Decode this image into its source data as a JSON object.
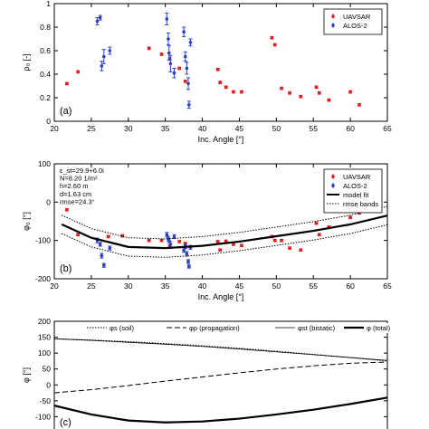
{
  "colors": {
    "uavsar": "#e41a1c",
    "alos2": "#2b3fc4",
    "axis": "#000000"
  },
  "chart_data": [
    {
      "type": "scatter",
      "panel_label": "(a)",
      "xlabel": "Inc. Angle [°]",
      "ylabel": "ρ₀ [-]",
      "xlim": [
        20,
        65
      ],
      "ylim": [
        0,
        1
      ],
      "xticks": [
        20,
        25,
        30,
        35,
        40,
        45,
        50,
        55,
        60,
        65
      ],
      "yticks": [
        0,
        0.2,
        0.4,
        0.6,
        0.8,
        1
      ],
      "legend": {
        "placement": "top-right",
        "entries": [
          "UAVSAR",
          "ALOS-2"
        ]
      },
      "series": [
        {
          "name": "UAVSAR",
          "color": "#e41a1c",
          "x": [
            21.7,
            23.2,
            32.8,
            34.5,
            35.6,
            36.9,
            37.7,
            42.1,
            42.4,
            43.2,
            44.2,
            45.3,
            49.4,
            49.8,
            50.7,
            51.8,
            53.3,
            55.4,
            55.8,
            57.1,
            60.0,
            61.2
          ],
          "y": [
            0.32,
            0.42,
            0.62,
            0.57,
            0.53,
            0.45,
            0.34,
            0.44,
            0.33,
            0.29,
            0.25,
            0.25,
            0.71,
            0.65,
            0.28,
            0.24,
            0.21,
            0.29,
            0.24,
            0.18,
            0.25,
            0.14
          ],
          "err": [
            0.01,
            0.01,
            0.01,
            0.01,
            0.01,
            0.01,
            0.01,
            0.01,
            0.01,
            0.01,
            0.01,
            0.01,
            0.01,
            0.01,
            0.01,
            0.01,
            0.01,
            0.01,
            0.01,
            0.01,
            0.01,
            0.01
          ]
        },
        {
          "name": "ALOS-2",
          "color": "#2b3fc4",
          "x": [
            25.8,
            26.2,
            26.4,
            26.7,
            27.5,
            35.2,
            35.4,
            35.5,
            35.7,
            36.2,
            37.5,
            37.7,
            37.9,
            38.1,
            38.2,
            38.4
          ],
          "y": [
            0.85,
            0.88,
            0.47,
            0.55,
            0.6,
            0.87,
            0.7,
            0.58,
            0.49,
            0.41,
            0.76,
            0.55,
            0.45,
            0.32,
            0.14,
            0.67
          ],
          "err": [
            0.03,
            0.02,
            0.04,
            0.06,
            0.03,
            0.05,
            0.05,
            0.06,
            0.07,
            0.04,
            0.04,
            0.04,
            0.05,
            0.05,
            0.03,
            0.03
          ]
        }
      ]
    },
    {
      "type": "scatter",
      "panel_label": "(b)",
      "xlabel": "Inc. Angle [°]",
      "ylabel": "φ₀ [°]",
      "xlim": [
        20,
        65
      ],
      "ylim": [
        -200,
        100
      ],
      "xticks": [
        20,
        25,
        30,
        35,
        40,
        45,
        50,
        55,
        60,
        65
      ],
      "yticks": [
        -200,
        -100,
        0,
        100
      ],
      "annotations": [
        "ε_st=29.9+6.0i",
        "N=8.20 1/m²",
        "h=2.60 m",
        "d=1.63 cm",
        "rmse=24.3°"
      ],
      "legend": {
        "placement": "top-right",
        "entries": [
          "UAVSAR",
          "ALOS-2",
          "model fit",
          "rmse bands"
        ]
      },
      "series": [
        {
          "name": "UAVSAR",
          "color": "#e41a1c",
          "x": [
            21.7,
            23.2,
            27.3,
            29.2,
            32.8,
            34.5,
            35.6,
            36.9,
            37.7,
            42.1,
            42.4,
            43.2,
            44.2,
            45.3,
            49.4,
            49.8,
            50.7,
            51.8,
            53.3,
            55.4,
            55.8,
            57.1,
            60.0,
            61.2
          ],
          "y": [
            -20,
            -85,
            -90,
            -88,
            -100,
            -100,
            -115,
            -103,
            -108,
            -103,
            -125,
            -102,
            -110,
            -113,
            -90,
            -100,
            -100,
            -120,
            -125,
            -55,
            -85,
            -65,
            -40,
            -28
          ],
          "err": [
            3,
            3,
            3,
            3,
            3,
            3,
            3,
            3,
            3,
            3,
            3,
            3,
            3,
            3,
            3,
            3,
            3,
            3,
            3,
            3,
            3,
            3,
            3,
            3
          ]
        },
        {
          "name": "ALOS-2",
          "color": "#2b3fc4",
          "x": [
            25.8,
            26.2,
            26.4,
            26.7,
            27.5,
            35.2,
            35.4,
            35.5,
            35.7,
            36.2,
            37.5,
            37.7,
            37.9,
            38.1,
            38.2,
            38.4
          ],
          "y": [
            -100,
            -110,
            -140,
            -165,
            -120,
            -85,
            -95,
            -100,
            -110,
            -90,
            -125,
            -115,
            -135,
            -155,
            -168,
            -118
          ],
          "err": [
            6,
            5,
            6,
            5,
            5,
            6,
            6,
            6,
            7,
            5,
            6,
            6,
            6,
            5,
            4,
            5
          ]
        },
        {
          "name": "model fit",
          "style": "line",
          "x": [
            21,
            25,
            30,
            35,
            40,
            45,
            50,
            55,
            60,
            65
          ],
          "y": [
            -58,
            -93,
            -117,
            -120,
            -114,
            -103,
            -89,
            -75,
            -58,
            -35
          ]
        },
        {
          "name": "rmse bands",
          "style": "dotted",
          "x": [
            21,
            25,
            30,
            35,
            40,
            45,
            50,
            55,
            60,
            65
          ],
          "y_upper": [
            -34,
            -69,
            -93,
            -96,
            -90,
            -79,
            -65,
            -51,
            -34,
            -11
          ],
          "y_lower": [
            -82,
            -117,
            -141,
            -144,
            -138,
            -127,
            -113,
            -99,
            -82,
            -59
          ]
        }
      ]
    },
    {
      "type": "line",
      "panel_label": "(c)",
      "ylabel": "φ [°]",
      "xlim": [
        20,
        65
      ],
      "ylim": [
        -150,
        200
      ],
      "yticks": [
        -100,
        -50,
        0,
        50,
        100,
        150,
        200
      ],
      "legend": {
        "placement": "top",
        "entries": [
          "φs (soil)",
          "φp (propagation)",
          "φst (bistatic)",
          "φ (total)"
        ]
      },
      "series": [
        {
          "name": "φs (soil)",
          "style": "dotted",
          "x": [
            20,
            25,
            30,
            35,
            40,
            45,
            50,
            55,
            60,
            65
          ],
          "y": [
            145,
            141,
            136,
            130,
            123,
            115,
            106,
            96,
            86,
            75
          ]
        },
        {
          "name": "φp (propagation)",
          "style": "dashed",
          "x": [
            20,
            25,
            30,
            35,
            40,
            45,
            50,
            55,
            60,
            65
          ],
          "y": [
            -25,
            -15,
            -2,
            12,
            25,
            38,
            50,
            60,
            68,
            72
          ]
        },
        {
          "name": "φst (bistatic)",
          "style": "thin",
          "x": [
            20,
            25,
            30,
            35,
            40,
            45,
            50,
            55,
            60,
            65
          ],
          "y": [
            145,
            140,
            134,
            128,
            121,
            113,
            104,
            95,
            86,
            77
          ]
        },
        {
          "name": "φ (total)",
          "style": "thick",
          "x": [
            20,
            25,
            30,
            35,
            40,
            45,
            50,
            55,
            60,
            65
          ],
          "y": [
            -65,
            -93,
            -112,
            -118,
            -115,
            -106,
            -93,
            -78,
            -60,
            -40
          ]
        }
      ]
    }
  ]
}
